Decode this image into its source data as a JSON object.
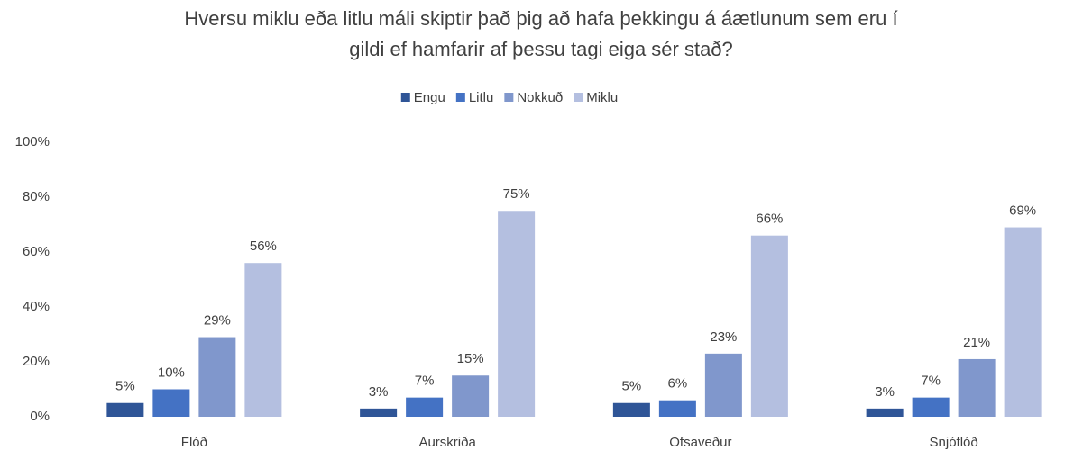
{
  "chart_data": {
    "type": "bar",
    "title": [
      "Hversu miklu eða litlu máli skiptir það þig að hafa þekkingu á áætlunum sem eru í",
      "gildi ef hamfarir af þessu tagi eiga sér stað?"
    ],
    "categories": [
      "Flóð",
      "Aurskriða",
      "Ofsaveður",
      "Snjóflóð"
    ],
    "series": [
      {
        "name": "Engu",
        "color": "#2f5597",
        "values": [
          5,
          3,
          5,
          3
        ],
        "value_labels": [
          "5%",
          "3%",
          "5%",
          "3%"
        ]
      },
      {
        "name": "Litlu",
        "color": "#4472c4",
        "values": [
          10,
          7,
          6,
          7
        ],
        "value_labels": [
          "10%",
          "7%",
          "6%",
          "7%"
        ]
      },
      {
        "name": "Nokkuð",
        "color": "#8097cc",
        "values": [
          29,
          15,
          23,
          21
        ],
        "value_labels": [
          "29%",
          "15%",
          "23%",
          "21%"
        ]
      },
      {
        "name": "Miklu",
        "color": "#b4bfe0",
        "values": [
          56,
          75,
          66,
          69
        ],
        "value_labels": [
          "56%",
          "75%",
          "66%",
          "69%"
        ]
      }
    ],
    "ylim": [
      0,
      100
    ],
    "yticks": [
      {
        "value": 0,
        "label": "0%"
      },
      {
        "value": 20,
        "label": "20%"
      },
      {
        "value": 40,
        "label": "40%"
      },
      {
        "value": 60,
        "label": "60%"
      },
      {
        "value": 80,
        "label": "80%"
      },
      {
        "value": 100,
        "label": "100%"
      }
    ],
    "grid": false,
    "legend": "top"
  }
}
